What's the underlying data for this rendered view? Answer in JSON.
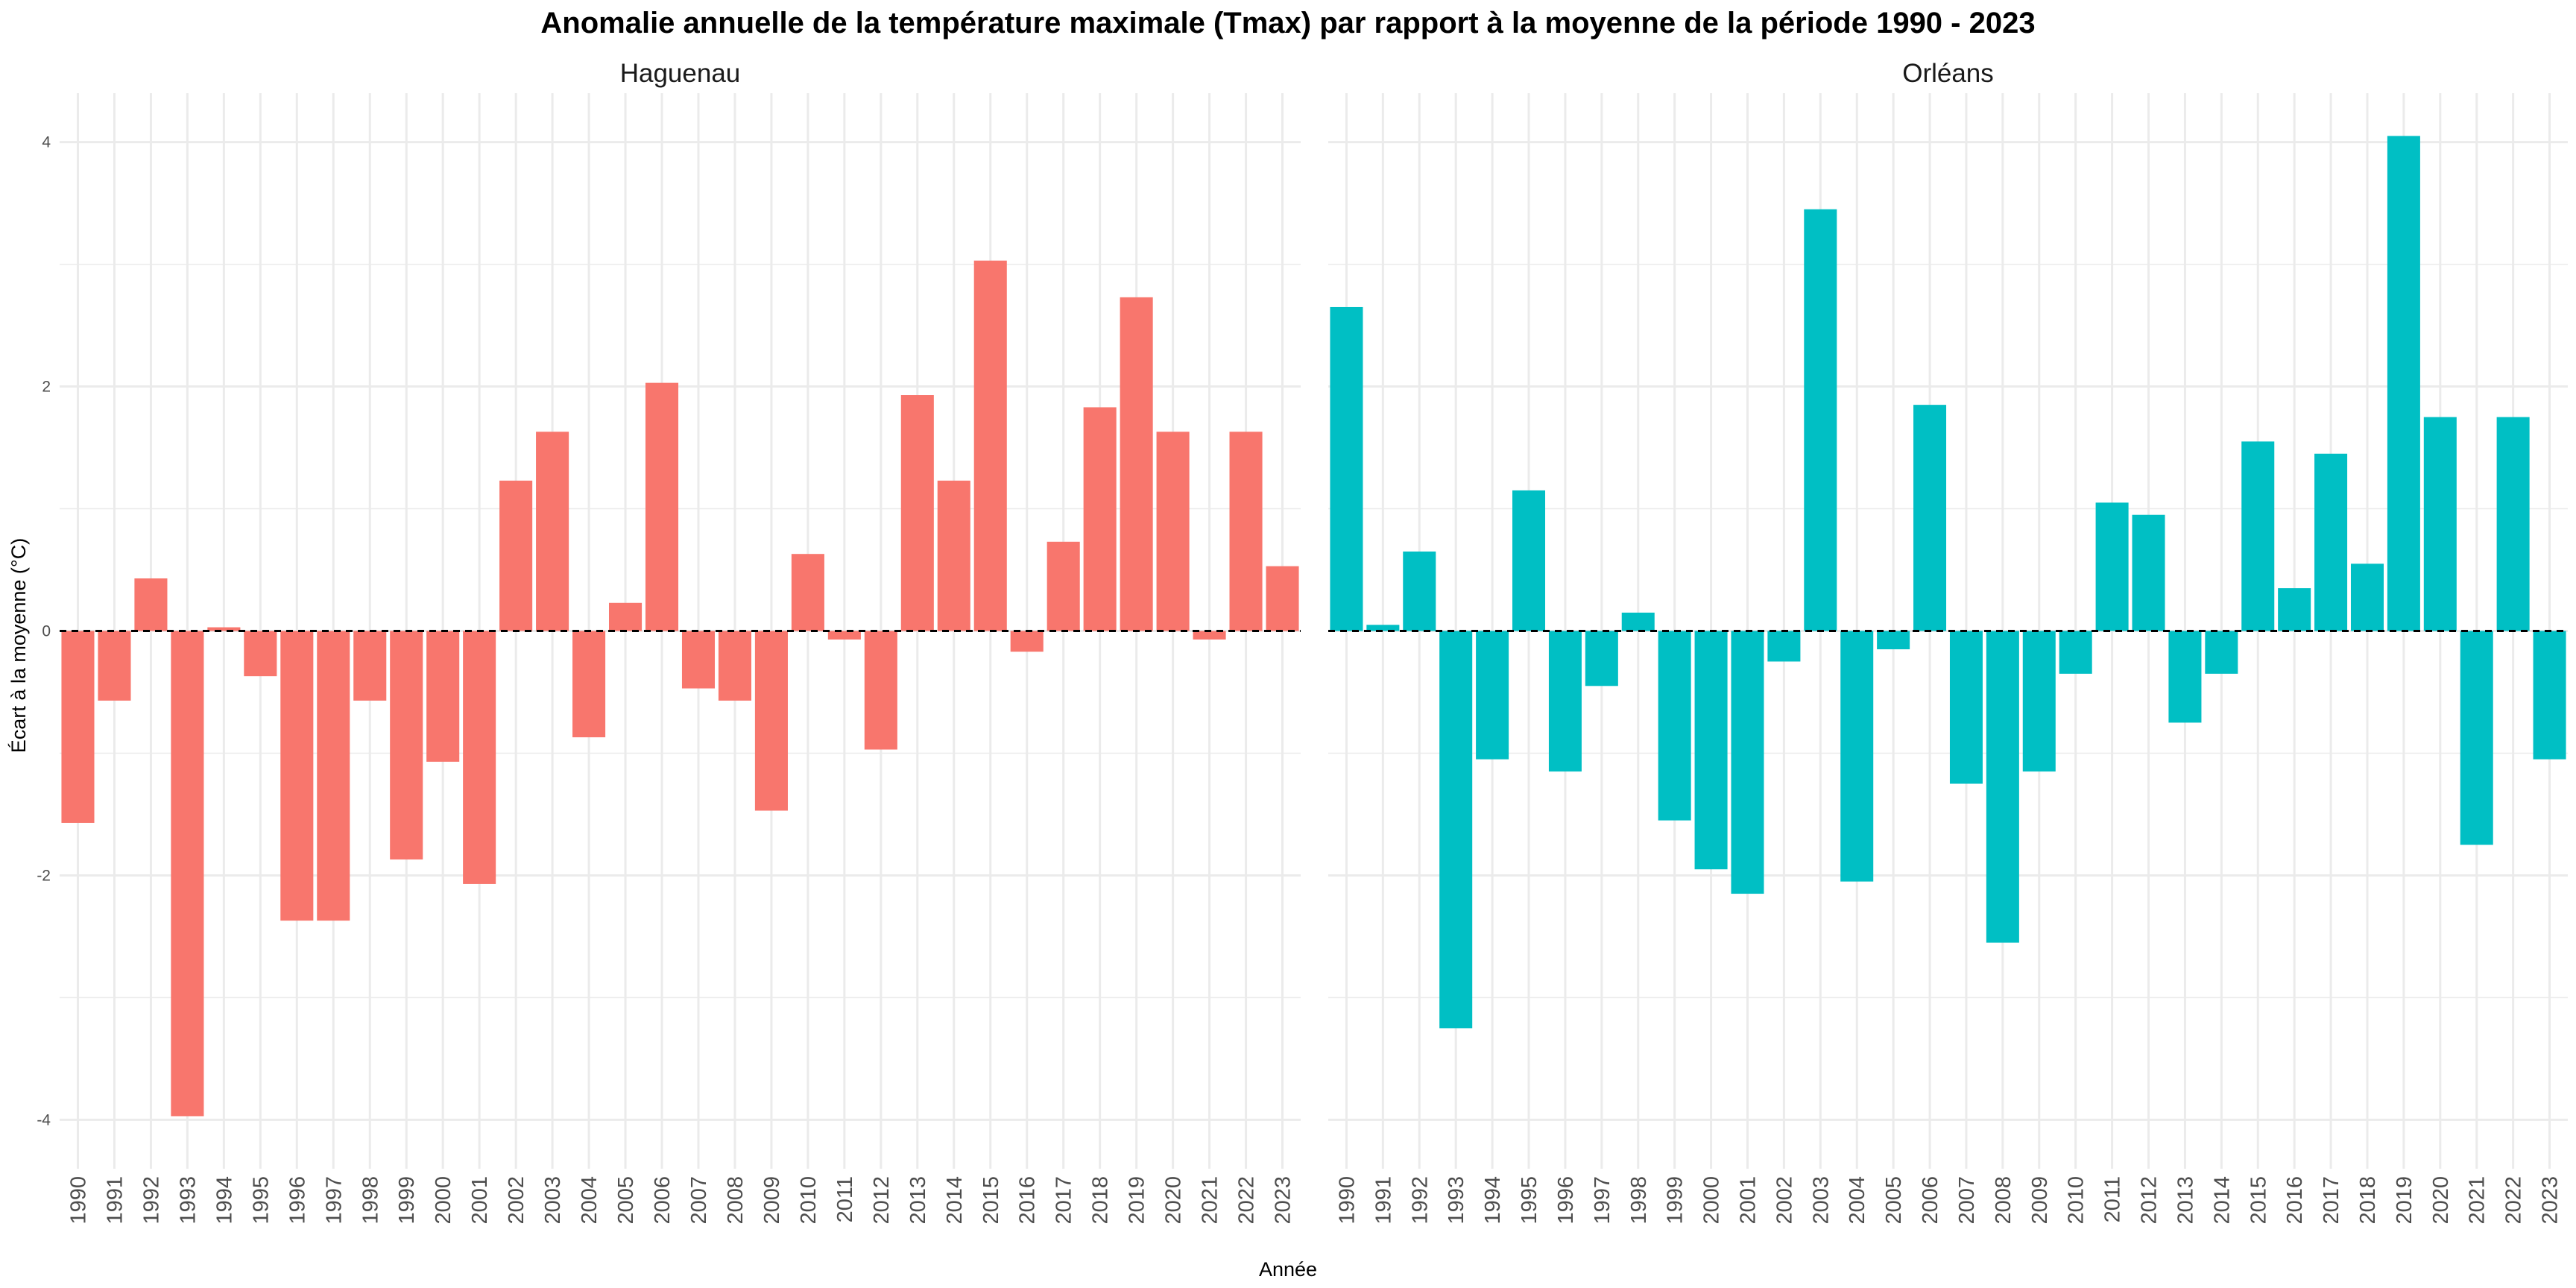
{
  "chart_data": {
    "type": "bar",
    "title": "Anomalie annuelle de la température maximale (Tmax) par rapport à la moyenne de la période 1990 - 2023",
    "xlabel": "Année",
    "ylabel": "Écart à la moyenne (°C)",
    "ylim": [
      -4.4,
      4.4
    ],
    "yticks": [
      -4,
      -2,
      0,
      2,
      4
    ],
    "ytick_labels": [
      "-4",
      "-2",
      "0",
      "2",
      "4"
    ],
    "grid": true,
    "legend": "none",
    "reference_line": {
      "y": 0,
      "style": "dashed"
    },
    "categories": [
      "1990",
      "1991",
      "1992",
      "1993",
      "1994",
      "1995",
      "1996",
      "1997",
      "1998",
      "1999",
      "2000",
      "2001",
      "2002",
      "2003",
      "2004",
      "2005",
      "2006",
      "2007",
      "2008",
      "2009",
      "2010",
      "2011",
      "2012",
      "2013",
      "2014",
      "2015",
      "2016",
      "2017",
      "2018",
      "2019",
      "2020",
      "2021",
      "2022",
      "2023"
    ],
    "series": [
      {
        "name": "Haguenau",
        "color": "#F8766D",
        "values": [
          -1.57,
          -0.57,
          0.43,
          -3.97,
          0.03,
          -0.37,
          -2.37,
          -2.37,
          -0.57,
          -1.87,
          -1.07,
          -2.07,
          1.23,
          1.63,
          -0.87,
          0.23,
          2.03,
          -0.47,
          -0.57,
          -1.47,
          0.63,
          -0.07,
          -0.97,
          1.93,
          1.23,
          3.03,
          -0.17,
          0.73,
          1.83,
          2.73,
          1.63,
          -0.07,
          1.63,
          0.53
        ]
      },
      {
        "name": "Orléans",
        "color": "#00BFC4",
        "values": [
          2.65,
          0.05,
          0.65,
          -3.25,
          -1.05,
          1.15,
          -1.15,
          -0.45,
          0.15,
          -1.55,
          -1.95,
          -2.15,
          -0.25,
          3.45,
          -2.05,
          -0.15,
          1.85,
          -1.25,
          -2.55,
          -1.15,
          -0.35,
          1.05,
          0.95,
          -0.75,
          -0.35,
          1.55,
          0.35,
          1.45,
          0.55,
          4.05,
          1.75,
          -1.75,
          1.75,
          -1.05
        ]
      }
    ]
  }
}
